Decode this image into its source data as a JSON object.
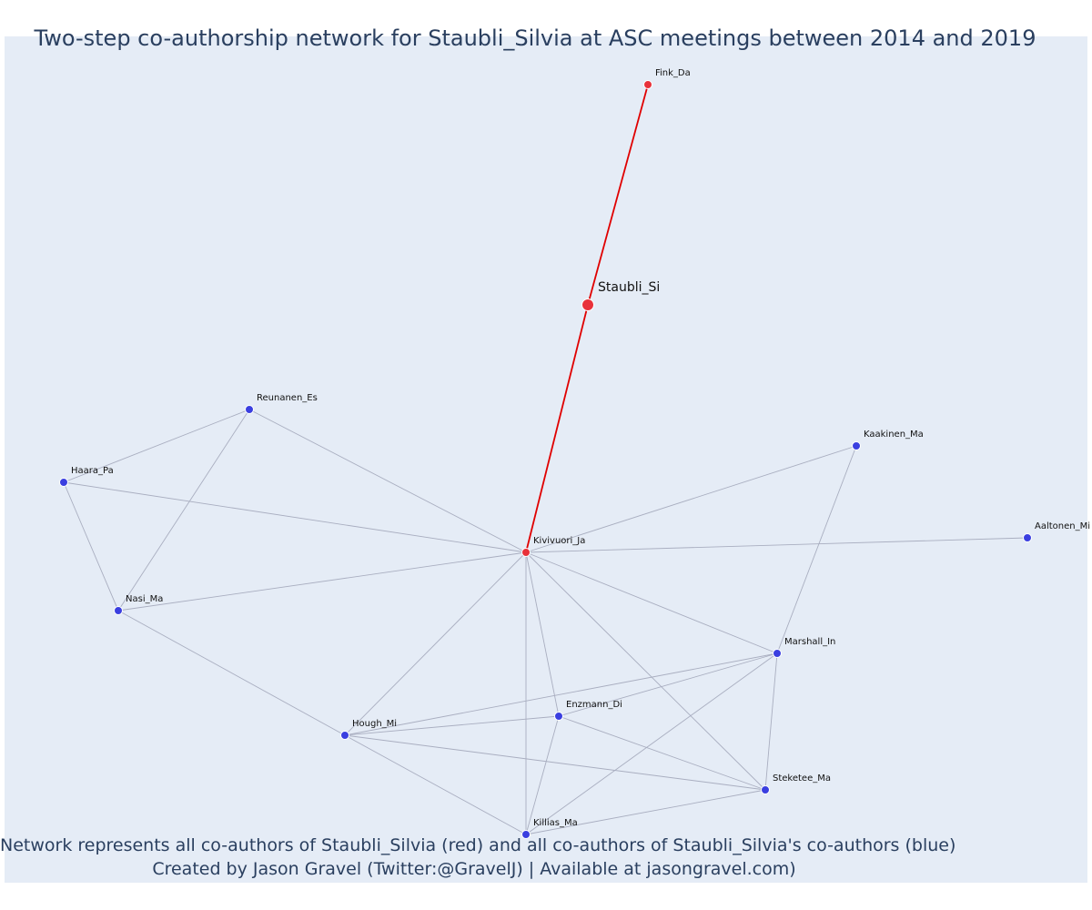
{
  "title": "Two-step co-authorship network for Staubli_Silvia at ASC meetings between 2014 and 2019",
  "caption_line1": "Network represents all co-authors of Staubli_Silvia (red) and all co-authors of Staubli_Silvia's co-authors (blue)",
  "caption_line2": "Created by Jason Gravel (Twitter:@GravelJ) | Available at jasongravel.com)",
  "colors": {
    "coauthor": "#e8313a",
    "second_step": "#3a3fe0",
    "red_edge": "#e00000",
    "gray_edge": "#a9aec0"
  },
  "nodes": [
    {
      "id": "Staubli_Si",
      "label": "Staubli_Si",
      "group": "red",
      "focal": true
    },
    {
      "id": "Fink_Da",
      "label": "Fink_Da",
      "group": "red"
    },
    {
      "id": "Kivivuori_Ja",
      "label": "Kivivuori_Ja",
      "group": "red"
    },
    {
      "id": "Reunanen_Es",
      "label": "Reunanen_Es",
      "group": "blue"
    },
    {
      "id": "Haara_Pa",
      "label": "Haara_Pa",
      "group": "blue"
    },
    {
      "id": "Nasi_Ma",
      "label": "Nasi_Ma",
      "group": "blue"
    },
    {
      "id": "Kaakinen_Ma",
      "label": "Kaakinen_Ma",
      "group": "blue"
    },
    {
      "id": "Aaltonen_Mi",
      "label": "Aaltonen_Mi",
      "group": "blue"
    },
    {
      "id": "Marshall_In",
      "label": "Marshall_In",
      "group": "blue"
    },
    {
      "id": "Enzmann_Di",
      "label": "Enzmann_Di",
      "group": "blue"
    },
    {
      "id": "Hough_Mi",
      "label": "Hough_Mi",
      "group": "blue"
    },
    {
      "id": "Steketee_Ma",
      "label": "Steketee_Ma",
      "group": "blue"
    },
    {
      "id": "Killias_Ma",
      "label": "Killias_Ma",
      "group": "blue"
    }
  ],
  "edges": [
    {
      "source": "Fink_Da",
      "target": "Staubli_Si",
      "type": "red"
    },
    {
      "source": "Staubli_Si",
      "target": "Kivivuori_Ja",
      "type": "red"
    },
    {
      "source": "Reunanen_Es",
      "target": "Haara_Pa",
      "type": "gray"
    },
    {
      "source": "Reunanen_Es",
      "target": "Nasi_Ma",
      "type": "gray"
    },
    {
      "source": "Reunanen_Es",
      "target": "Kivivuori_Ja",
      "type": "gray"
    },
    {
      "source": "Haara_Pa",
      "target": "Nasi_Ma",
      "type": "gray"
    },
    {
      "source": "Haara_Pa",
      "target": "Kivivuori_Ja",
      "type": "gray"
    },
    {
      "source": "Nasi_Ma",
      "target": "Kivivuori_Ja",
      "type": "gray"
    },
    {
      "source": "Nasi_Ma",
      "target": "Hough_Mi",
      "type": "gray"
    },
    {
      "source": "Kaakinen_Ma",
      "target": "Kivivuori_Ja",
      "type": "gray"
    },
    {
      "source": "Kaakinen_Ma",
      "target": "Marshall_In",
      "type": "gray"
    },
    {
      "source": "Aaltonen_Mi",
      "target": "Kivivuori_Ja",
      "type": "gray"
    },
    {
      "source": "Kivivuori_Ja",
      "target": "Marshall_In",
      "type": "gray"
    },
    {
      "source": "Kivivuori_Ja",
      "target": "Hough_Mi",
      "type": "gray"
    },
    {
      "source": "Kivivuori_Ja",
      "target": "Enzmann_Di",
      "type": "gray"
    },
    {
      "source": "Kivivuori_Ja",
      "target": "Killias_Ma",
      "type": "gray"
    },
    {
      "source": "Kivivuori_Ja",
      "target": "Steketee_Ma",
      "type": "gray"
    },
    {
      "source": "Marshall_In",
      "target": "Hough_Mi",
      "type": "gray"
    },
    {
      "source": "Marshall_In",
      "target": "Enzmann_Di",
      "type": "gray"
    },
    {
      "source": "Marshall_In",
      "target": "Killias_Ma",
      "type": "gray"
    },
    {
      "source": "Marshall_In",
      "target": "Steketee_Ma",
      "type": "gray"
    },
    {
      "source": "Hough_Mi",
      "target": "Enzmann_Di",
      "type": "gray"
    },
    {
      "source": "Hough_Mi",
      "target": "Steketee_Ma",
      "type": "gray"
    },
    {
      "source": "Hough_Mi",
      "target": "Killias_Ma",
      "type": "gray"
    },
    {
      "source": "Enzmann_Di",
      "target": "Killias_Ma",
      "type": "gray"
    },
    {
      "source": "Enzmann_Di",
      "target": "Steketee_Ma",
      "type": "gray"
    },
    {
      "source": "Killias_Ma",
      "target": "Steketee_Ma",
      "type": "gray"
    }
  ]
}
